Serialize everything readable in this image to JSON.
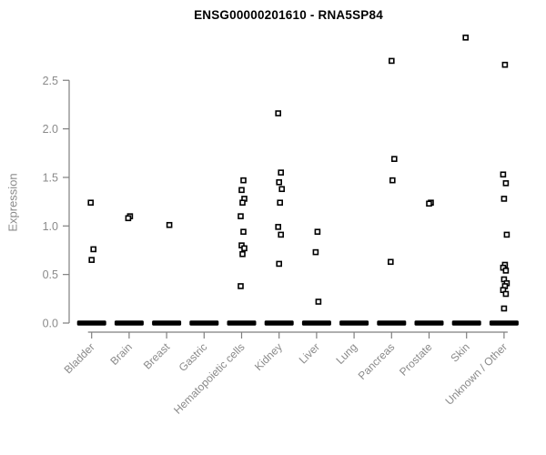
{
  "chart_data": {
    "type": "scatter",
    "subtype": "strip-plot",
    "title": "ENSG00000201610 - RNA5SP84",
    "xlabel": "",
    "ylabel": "Expression",
    "ylim": [
      0,
      3.0
    ],
    "yticks": [
      0.0,
      0.5,
      1.0,
      1.5,
      2.0,
      2.5
    ],
    "ytick_labels": [
      "0.0",
      "0.5",
      "1.0",
      "1.5",
      "2.0",
      "2.5"
    ],
    "grid": false,
    "legend": "none",
    "marker": "open-square",
    "categories": [
      "Bladder",
      "Brain",
      "Breast",
      "Gastric",
      "Hematopoietic cells",
      "Kidney",
      "Liver",
      "Lung",
      "Pancreas",
      "Prostate",
      "Skin",
      "Unknown / Other"
    ],
    "series": [
      {
        "category": "Bladder",
        "values": [
          1.24,
          0.76,
          0.65
        ],
        "zero_bar": true
      },
      {
        "category": "Brain",
        "values": [
          1.1,
          1.08
        ],
        "zero_bar": true
      },
      {
        "category": "Breast",
        "values": [
          1.01
        ],
        "zero_bar": true
      },
      {
        "category": "Gastric",
        "values": [],
        "zero_bar": true
      },
      {
        "category": "Hematopoietic cells",
        "values": [
          1.47,
          1.37,
          1.28,
          1.24,
          1.1,
          0.94,
          0.8,
          0.77,
          0.71,
          0.38
        ],
        "zero_bar": true
      },
      {
        "category": "Kidney",
        "values": [
          2.16,
          1.55,
          1.45,
          1.38,
          1.24,
          0.99,
          0.91,
          0.61
        ],
        "zero_bar": true
      },
      {
        "category": "Liver",
        "values": [
          0.94,
          0.73,
          0.22
        ],
        "zero_bar": true
      },
      {
        "category": "Lung",
        "values": [],
        "zero_bar": true
      },
      {
        "category": "Pancreas",
        "values": [
          2.7,
          1.69,
          1.47,
          0.63
        ],
        "zero_bar": true
      },
      {
        "category": "Prostate",
        "values": [
          1.24,
          1.23
        ],
        "zero_bar": true
      },
      {
        "category": "Skin",
        "values": [
          2.94
        ],
        "zero_bar": true
      },
      {
        "category": "Unknown / Other",
        "values": [
          2.66,
          1.53,
          1.44,
          1.28,
          0.91,
          0.6,
          0.57,
          0.54,
          0.45,
          0.41,
          0.38,
          0.34,
          0.3,
          0.15
        ],
        "zero_bar": true
      }
    ],
    "zero_bar_meaning": "thick black dash at y=0 under every category (many overlapping zero-expression points)",
    "colors": {
      "point": "#000000",
      "zero_bar": "#000000",
      "axis": "#7f7f7f",
      "tick_label": "#8a8a8a",
      "title": "#000000",
      "background": "#ffffff"
    }
  }
}
